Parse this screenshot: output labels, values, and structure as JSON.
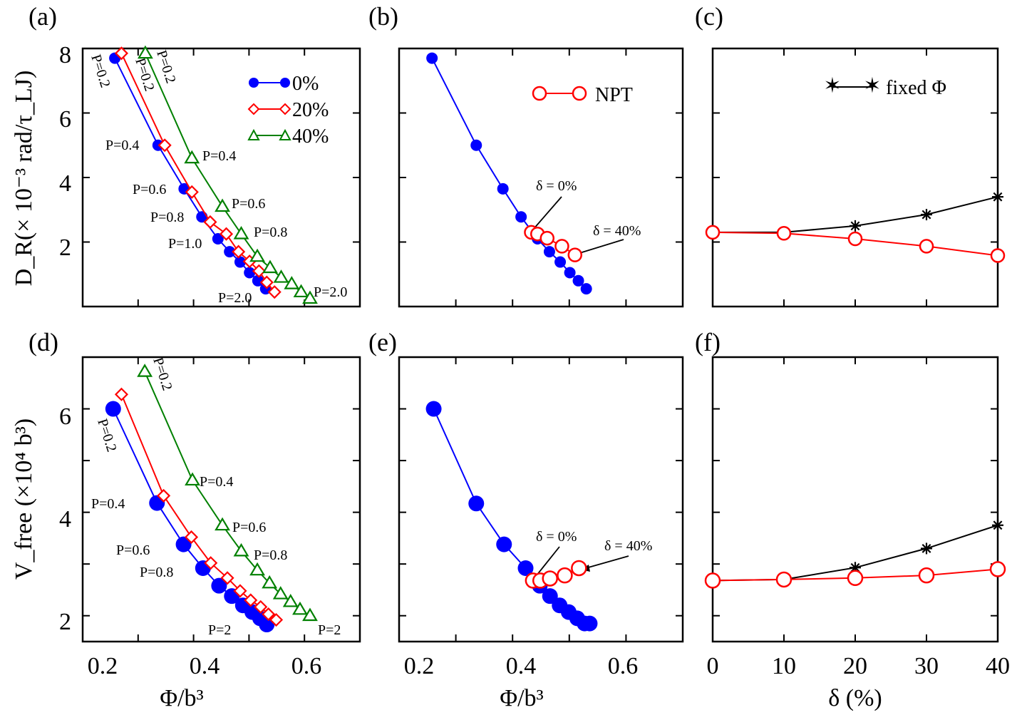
{
  "colors": {
    "blue": "#0000ff",
    "red": "#ff0000",
    "green": "#008000",
    "black": "#000000"
  },
  "chart_data": [
    {
      "panel": "(a)",
      "type": "line",
      "xlabel": "",
      "ylabel": "D_R(× 10⁻³ rad/τ_LJ)",
      "xlim": [
        0.2,
        0.7
      ],
      "ylim": [
        0,
        8
      ],
      "yticks": [
        "2",
        "4",
        "6",
        "8"
      ],
      "legend": {
        "position": "top-right",
        "entries": [
          "0%",
          "20%",
          "40%"
        ]
      },
      "series": [
        {
          "name": "0%",
          "color": "#0000ff",
          "marker": "filled-circle",
          "x": [
            0.258,
            0.336,
            0.383,
            0.415,
            0.444,
            0.465,
            0.484,
            0.501,
            0.516,
            0.53
          ],
          "y": [
            7.7,
            5.0,
            3.65,
            2.78,
            2.1,
            1.7,
            1.38,
            1.05,
            0.8,
            0.55
          ]
        },
        {
          "name": "20%",
          "color": "#ff0000",
          "marker": "open-diamond",
          "x": [
            0.27,
            0.348,
            0.397,
            0.43,
            0.459,
            0.481,
            0.501,
            0.518,
            0.532,
            0.546
          ],
          "y": [
            7.85,
            5.0,
            3.55,
            2.62,
            2.25,
            1.7,
            1.4,
            1.1,
            0.75,
            0.45
          ]
        },
        {
          "name": "40%",
          "color": "#008000",
          "marker": "open-triangle",
          "x": [
            0.313,
            0.397,
            0.452,
            0.486,
            0.515,
            0.538,
            0.558,
            0.577,
            0.594,
            0.61
          ],
          "y": [
            7.85,
            4.6,
            3.1,
            2.25,
            1.55,
            1.2,
            0.9,
            0.7,
            0.45,
            0.25
          ]
        }
      ],
      "annotations": [
        "P=0.2",
        "P=0.2",
        "P=0.2",
        "P=0.4",
        "P=0.4",
        "P=0.6",
        "P=0.6",
        "P=0.8",
        "P=0.8",
        "P=1.0",
        "P=2.0",
        "P=2.0"
      ]
    },
    {
      "panel": "(b)",
      "type": "line",
      "xlabel": "Φ/b³",
      "xlim": [
        0.2,
        0.7
      ],
      "ylim": [
        0,
        8
      ],
      "legend": {
        "position": "top-right",
        "entries": [
          "NPT"
        ]
      },
      "series": [
        {
          "name": "",
          "color": "#0000ff",
          "marker": "filled-circle",
          "x": [
            0.258,
            0.336,
            0.383,
            0.415,
            0.444,
            0.465,
            0.484,
            0.501,
            0.516,
            0.53
          ],
          "y": [
            7.7,
            5.0,
            3.65,
            2.78,
            2.1,
            1.7,
            1.38,
            1.05,
            0.8,
            0.55
          ]
        },
        {
          "name": "NPT",
          "color": "#ff0000",
          "marker": "open-circle",
          "x": [
            0.433,
            0.444,
            0.461,
            0.487,
            0.51
          ],
          "y": [
            2.3,
            2.25,
            2.12,
            1.87,
            1.6
          ]
        }
      ],
      "annotations": [
        "δ = 0%",
        "δ = 40%"
      ]
    },
    {
      "panel": "(c)",
      "type": "line",
      "xlabel": "",
      "xlim": [
        0,
        40
      ],
      "ylim": [
        0,
        8
      ],
      "legend": {
        "position": "top-right",
        "entries": [
          "fixed Φ"
        ]
      },
      "series": [
        {
          "name": "fixed Φ",
          "color": "#000000",
          "marker": "star",
          "x": [
            0,
            10,
            20,
            30,
            40
          ],
          "y": [
            2.3,
            2.3,
            2.5,
            2.85,
            3.4
          ]
        },
        {
          "name": "",
          "color": "#ff0000",
          "marker": "open-circle",
          "x": [
            0,
            10,
            20,
            30,
            40
          ],
          "y": [
            2.3,
            2.27,
            2.1,
            1.87,
            1.58
          ]
        }
      ]
    },
    {
      "panel": "(d)",
      "type": "line",
      "xlabel": "Φ/b³",
      "ylabel": "V_free (×10⁴ b³)",
      "xlim": [
        0.2,
        0.7
      ],
      "xticks": [
        "0.2",
        "0.4",
        "0.6"
      ],
      "ylim": [
        1.5,
        7.0
      ],
      "yticks": [
        "2",
        "4",
        "6"
      ],
      "series": [
        {
          "name": "",
          "color": "#0000ff",
          "marker": "filled-circle",
          "x": [
            0.255,
            0.334,
            0.382,
            0.417,
            0.446,
            0.469,
            0.489,
            0.506,
            0.52,
            0.532
          ],
          "y": [
            6.0,
            4.18,
            3.38,
            2.92,
            2.58,
            2.38,
            2.2,
            2.07,
            1.95,
            1.83
          ]
        },
        {
          "name": "",
          "color": "#ff0000",
          "marker": "open-diamond",
          "x": [
            0.27,
            0.346,
            0.396,
            0.431,
            0.461,
            0.484,
            0.503,
            0.521,
            0.535,
            0.549
          ],
          "y": [
            6.28,
            4.32,
            3.52,
            3.02,
            2.73,
            2.48,
            2.3,
            2.17,
            2.03,
            1.92
          ]
        },
        {
          "name": "",
          "color": "#008000",
          "marker": "open-triangle",
          "x": [
            0.312,
            0.398,
            0.452,
            0.486,
            0.515,
            0.537,
            0.557,
            0.575,
            0.592,
            0.61
          ],
          "y": [
            6.72,
            4.62,
            3.75,
            3.25,
            2.88,
            2.63,
            2.42,
            2.27,
            2.12,
            2.0
          ]
        }
      ],
      "annotations": [
        "P=0.2",
        "P=0.2",
        "P=0.4",
        "P=0.4",
        "P=0.6",
        "P=0.6",
        "P=0.8",
        "P=0.8",
        "P=2",
        "P=2"
      ]
    },
    {
      "panel": "(e)",
      "type": "line",
      "xlabel": "Φ/b³",
      "xlim": [
        0.2,
        0.7
      ],
      "xticks": [
        "0.2",
        "0.4",
        "0.6"
      ],
      "ylim": [
        1.5,
        7.0
      ],
      "series": [
        {
          "name": "",
          "color": "#0000ff",
          "marker": "filled-circle",
          "x": [
            0.261,
            0.336,
            0.385,
            0.423,
            0.448,
            0.466,
            0.483,
            0.499,
            0.514,
            0.527,
            0.536
          ],
          "y": [
            6.0,
            4.17,
            3.38,
            2.92,
            2.58,
            2.38,
            2.2,
            2.07,
            1.95,
            1.85,
            1.85
          ]
        },
        {
          "name": "",
          "color": "#ff0000",
          "marker": "open-circle",
          "x": [
            0.436,
            0.449,
            0.466,
            0.492,
            0.517
          ],
          "y": [
            2.68,
            2.68,
            2.72,
            2.78,
            2.92
          ]
        }
      ],
      "annotations": [
        "δ = 0%",
        "δ = 40%"
      ]
    },
    {
      "panel": "(f)",
      "type": "line",
      "xlabel": "δ (%)",
      "xlim": [
        0,
        40
      ],
      "xticks": [
        "0",
        "10",
        "20",
        "30",
        "40"
      ],
      "ylim": [
        1.5,
        7.0
      ],
      "series": [
        {
          "name": "",
          "color": "#000000",
          "marker": "star",
          "x": [
            0,
            10,
            20,
            30,
            40
          ],
          "y": [
            2.68,
            2.7,
            2.93,
            3.3,
            3.75
          ]
        },
        {
          "name": "",
          "color": "#ff0000",
          "marker": "open-circle",
          "x": [
            0,
            10,
            20,
            30,
            40
          ],
          "y": [
            2.68,
            2.7,
            2.73,
            2.78,
            2.9
          ]
        }
      ]
    }
  ]
}
